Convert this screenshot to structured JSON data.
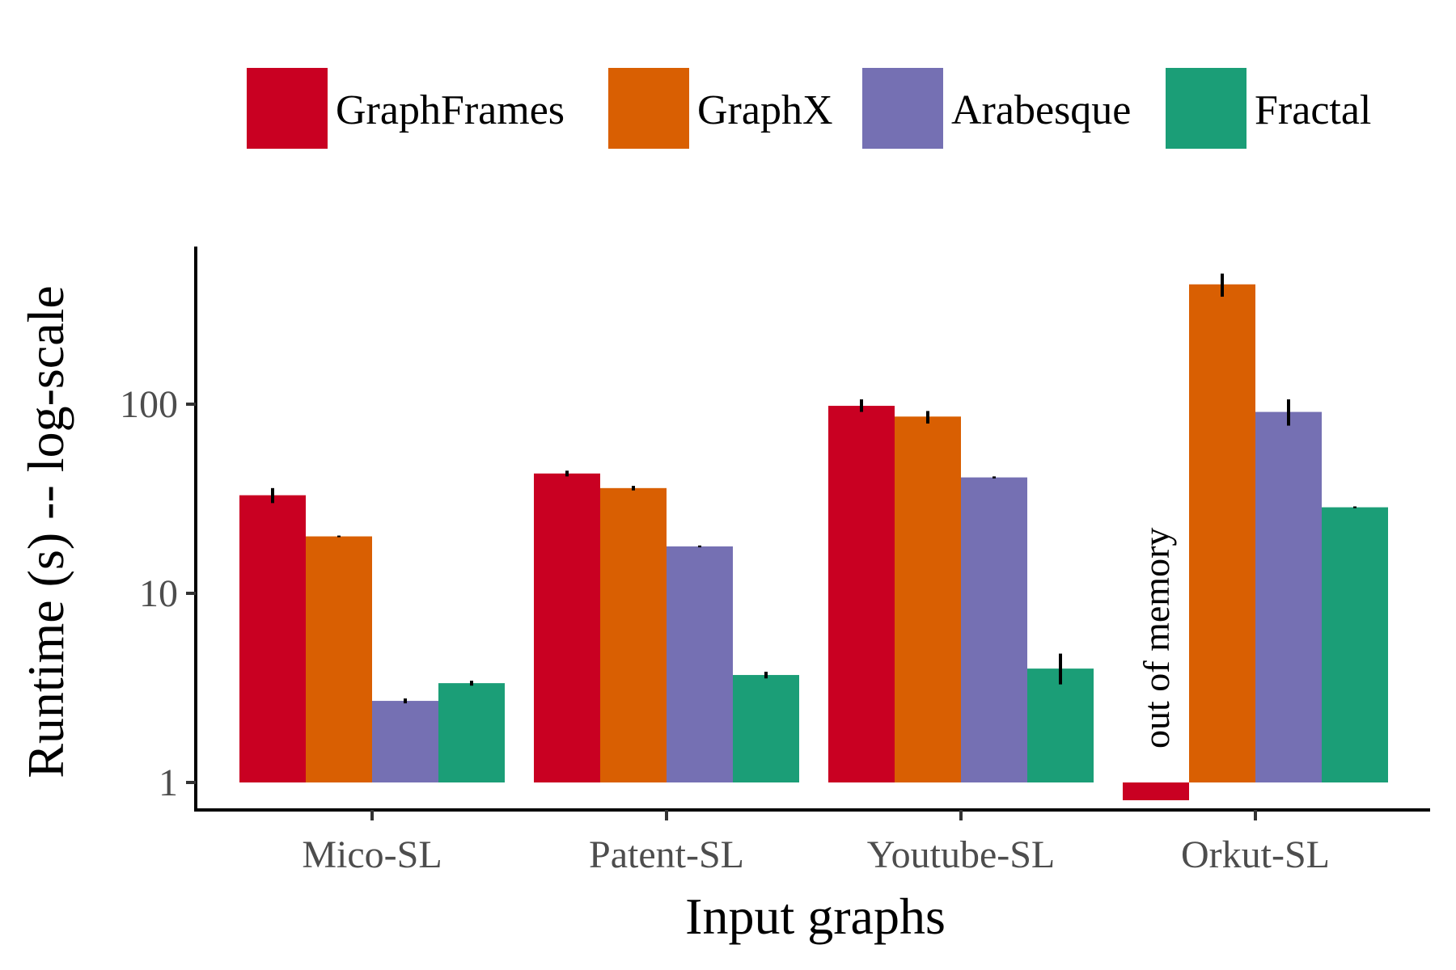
{
  "chart_data": {
    "type": "bar",
    "title": "",
    "xlabel": "Input graphs",
    "ylabel": "Runtime (s) -- log-scale",
    "y_scale": "log",
    "ylim": [
      0.8,
      700
    ],
    "yticks": [
      1,
      10,
      100
    ],
    "ytick_labels": [
      "1",
      "10",
      "100"
    ],
    "categories": [
      "Mico-SL",
      "Patent-SL",
      "Youtube-SL",
      "Orkut-SL"
    ],
    "legend_position": "top",
    "grid": false,
    "series": [
      {
        "name": "GraphFrames",
        "color": "#c90022",
        "values": [
          33,
          43,
          98,
          null
        ],
        "err_low": [
          30,
          41.5,
          91,
          null
        ],
        "err_high": [
          36,
          44.5,
          106,
          null
        ]
      },
      {
        "name": "GraphX",
        "color": "#d95f02",
        "values": [
          20,
          36,
          86,
          430
        ],
        "err_low": [
          19.8,
          35,
          79,
          370
        ],
        "err_high": [
          20.2,
          37,
          92,
          490
        ]
      },
      {
        "name": "Arabesque",
        "color": "#7570b3",
        "values": [
          2.7,
          17.7,
          41,
          91
        ],
        "err_low": [
          2.62,
          17.5,
          40.5,
          77
        ],
        "err_high": [
          2.78,
          17.9,
          41.5,
          106
        ]
      },
      {
        "name": "Fractal",
        "color": "#1b9e77",
        "values": [
          3.35,
          3.7,
          4.0,
          28.5
        ],
        "err_low": [
          3.25,
          3.55,
          3.3,
          28.2
        ],
        "err_high": [
          3.45,
          3.85,
          4.8,
          28.8
        ]
      }
    ],
    "annotations": [
      {
        "category": "Orkut-SL",
        "series": "GraphFrames",
        "text": "out of memory"
      }
    ]
  }
}
